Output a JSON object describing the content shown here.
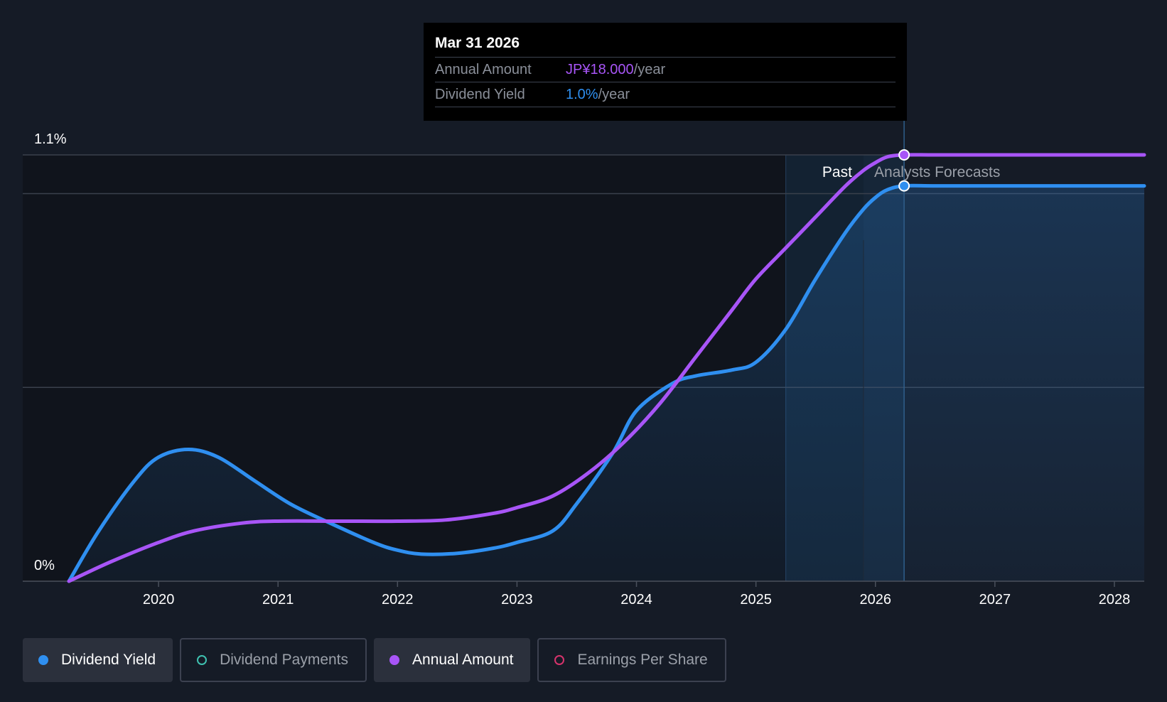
{
  "chart_data": {
    "type": "line",
    "title": "",
    "xlabel": "",
    "ylabel": "",
    "x_ticks": [
      "2020",
      "2021",
      "2022",
      "2023",
      "2024",
      "2025",
      "2026",
      "2027",
      "2028"
    ],
    "y_labels": [
      "1.1%",
      "0%"
    ],
    "ylim": [
      0,
      1.1
    ],
    "xlim": [
      2019.25,
      2028.25
    ],
    "divider_x": 2025.9,
    "forecast_start_x": 2025.25,
    "past_label": "Past",
    "forecast_label": "Analysts Forecasts",
    "series": [
      {
        "name": "Dividend Yield",
        "color": "#2f8ff0",
        "x": [
          2019.25,
          2019.5,
          2019.8,
          2020.0,
          2020.25,
          2020.5,
          2020.8,
          2021.1,
          2021.4,
          2021.8,
          2022.0,
          2022.2,
          2022.5,
          2022.8,
          2023.0,
          2023.3,
          2023.5,
          2023.8,
          2024.0,
          2024.3,
          2024.5,
          2024.8,
          2025.0,
          2025.25,
          2025.5,
          2025.75,
          2025.9,
          2026.0,
          2026.1,
          2026.24,
          2026.5,
          2027.0,
          2028.0,
          2028.25
        ],
        "y": [
          0.0,
          0.13,
          0.26,
          0.32,
          0.34,
          0.32,
          0.26,
          0.2,
          0.155,
          0.1,
          0.08,
          0.07,
          0.072,
          0.085,
          0.1,
          0.13,
          0.2,
          0.33,
          0.44,
          0.51,
          0.53,
          0.545,
          0.565,
          0.65,
          0.78,
          0.9,
          0.96,
          0.99,
          1.01,
          1.02,
          1.02,
          1.02,
          1.02,
          1.02
        ]
      },
      {
        "name": "Annual Amount",
        "color": "#a855f7",
        "x": [
          2019.25,
          2019.6,
          2020.0,
          2020.3,
          2020.7,
          2021.0,
          2021.5,
          2022.0,
          2022.4,
          2022.8,
          2023.0,
          2023.3,
          2023.6,
          2023.9,
          2024.2,
          2024.5,
          2024.8,
          2025.0,
          2025.25,
          2025.5,
          2025.75,
          2025.9,
          2026.0,
          2026.1,
          2026.24,
          2026.5,
          2027.0,
          2028.0,
          2028.25
        ],
        "y": [
          0.0,
          0.05,
          0.1,
          0.13,
          0.15,
          0.155,
          0.155,
          0.155,
          0.158,
          0.175,
          0.19,
          0.22,
          0.28,
          0.36,
          0.46,
          0.58,
          0.7,
          0.78,
          0.86,
          0.94,
          1.02,
          1.06,
          1.08,
          1.095,
          1.1,
          1.1,
          1.1,
          1.1,
          1.1
        ]
      }
    ],
    "highlight_point": {
      "x": 2026.24,
      "series_values": [
        1.02,
        1.1
      ]
    }
  },
  "tooltip": {
    "date": "Mar 31 2026",
    "annual_label": "Annual Amount",
    "annual_value": "JP¥18.000",
    "annual_unit": "/year",
    "yield_label": "Dividend Yield",
    "yield_value": "1.0%",
    "yield_unit": "/year"
  },
  "legend": [
    {
      "label": "Dividend Yield",
      "color": "#2f8ff0",
      "active": true
    },
    {
      "label": "Dividend Payments",
      "color": "#3fc1b0",
      "active": false
    },
    {
      "label": "Annual Amount",
      "color": "#a855f7",
      "active": true
    },
    {
      "label": "Earnings Per Share",
      "color": "#d6336c",
      "active": false
    }
  ]
}
